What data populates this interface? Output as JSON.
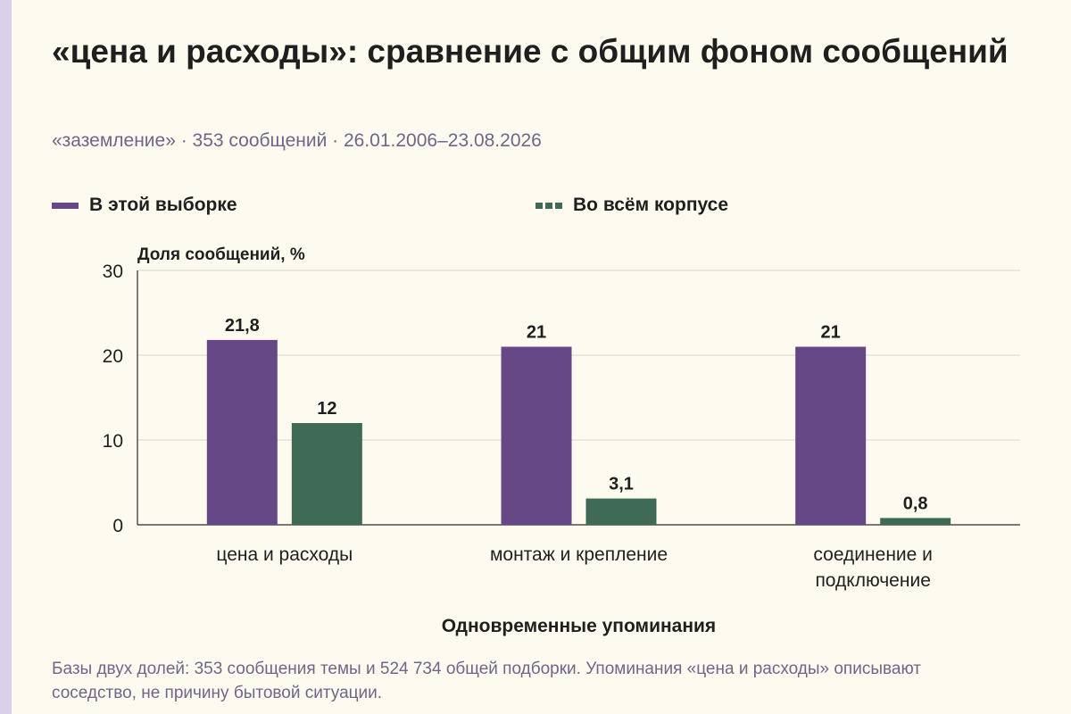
{
  "header": {
    "title": "«цена и расходы»: сравнение с общим фоном сообщений",
    "subtitle": "«заземление» · 353 сообщений · 26.01.2006–23.08.2026"
  },
  "footnote": "Базы двух долей: 353 сообщения темы и 524 734 общей подборки. Упоминания «цена и расходы» описывают соседство, не причину бытовой ситуации.",
  "colors": {
    "accent_bar": "#d9d0ea",
    "sample": "#674886",
    "corpus": "#3f6b56",
    "background": "#fdfbf0"
  },
  "chart_data": {
    "type": "bar",
    "title": "«цена и расходы»: сравнение с общим фоном сообщений",
    "subtitle": "«заземление» · 353 сообщений · 26.01.2006–23.08.2026",
    "xlabel": "Одновременные упоминания",
    "ylabel": "Доля сообщений, %",
    "ylim": [
      0,
      30
    ],
    "yticks": [
      "0",
      "10",
      "20",
      "30"
    ],
    "grid": true,
    "legend_position": "top-left",
    "categories": [
      [
        "цена и расходы"
      ],
      [
        "монтаж и крепление"
      ],
      [
        "соединение и",
        "подключение"
      ]
    ],
    "series": [
      {
        "name": "В этой выборке",
        "values": [
          21.8,
          21,
          21
        ],
        "labels": [
          "21,8",
          "21",
          "21"
        ]
      },
      {
        "name": "Во всём корпусе",
        "values": [
          12,
          3.1,
          0.8
        ],
        "labels": [
          "12",
          "3,1",
          "0,8"
        ]
      }
    ]
  }
}
